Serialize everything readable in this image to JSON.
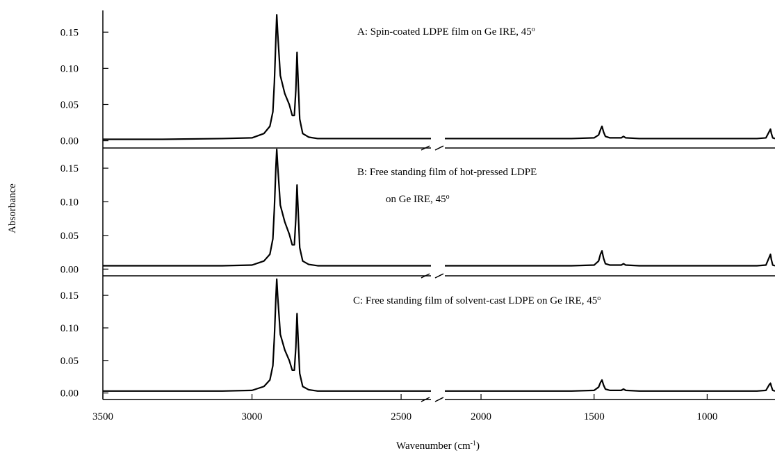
{
  "chart_data": [
    {
      "type": "line",
      "annotation": [
        {
          "text": "A:  Spin-coated LDPE film on Ge IRE, 45",
          "sup": "o"
        }
      ],
      "xlim": [
        [
          3500,
          2400
        ],
        [
          2160,
          700
        ]
      ],
      "ylim": [
        -0.01,
        0.18
      ],
      "yticks": [
        {
          "value": 0,
          "label": "0.00"
        },
        {
          "value": 0.05,
          "label": "0.05"
        },
        {
          "value": 0.1,
          "label": "0.10"
        },
        {
          "value": 0.15,
          "label": "0.15"
        }
      ],
      "x": [
        3500,
        3300,
        3100,
        3000,
        2960,
        2940,
        2930,
        2925,
        2920,
        2917,
        2914,
        2905,
        2890,
        2875,
        2865,
        2858,
        2853,
        2849,
        2845,
        2840,
        2830,
        2810,
        2780,
        2700,
        2600,
        2400,
        2300,
        2160,
        2000,
        1800,
        1600,
        1500,
        1480,
        1472,
        1465,
        1458,
        1450,
        1430,
        1380,
        1370,
        1360,
        1300,
        1100,
        900,
        780,
        740,
        730,
        725,
        720,
        716,
        710,
        700
      ],
      "series": [
        {
          "color": "#000000",
          "values": [
            0.002,
            0.002,
            0.003,
            0.004,
            0.01,
            0.02,
            0.04,
            0.08,
            0.14,
            0.174,
            0.15,
            0.09,
            0.065,
            0.05,
            0.035,
            0.035,
            0.07,
            0.122,
            0.08,
            0.03,
            0.01,
            0.005,
            0.003,
            0.003,
            0.003,
            0.003,
            null,
            0.003,
            0.003,
            0.003,
            0.003,
            0.004,
            0.008,
            0.015,
            0.02,
            0.012,
            0.006,
            0.004,
            0.004,
            0.006,
            0.004,
            0.003,
            0.003,
            0.003,
            0.003,
            0.004,
            0.01,
            0.013,
            0.016,
            0.01,
            0.004,
            0.003
          ]
        }
      ]
    },
    {
      "type": "line",
      "y_label": "Absorbance",
      "annotation": [
        {
          "text": "B:   Free standing film of hot-pressed LDPE"
        },
        {
          "text": "on Ge IRE, 45",
          "sup": "o"
        }
      ],
      "xlim": [
        [
          3500,
          2400
        ],
        [
          2160,
          700
        ]
      ],
      "ylim": [
        -0.01,
        0.18
      ],
      "yticks": [
        {
          "value": 0,
          "label": "0.00"
        },
        {
          "value": 0.05,
          "label": "0.05"
        },
        {
          "value": 0.1,
          "label": "0.10"
        },
        {
          "value": 0.15,
          "label": "0.15"
        }
      ],
      "x": [
        3500,
        3300,
        3100,
        3000,
        2960,
        2940,
        2930,
        2925,
        2920,
        2917,
        2914,
        2905,
        2890,
        2875,
        2865,
        2858,
        2853,
        2849,
        2845,
        2840,
        2830,
        2810,
        2780,
        2700,
        2600,
        2400,
        2300,
        2160,
        2000,
        1800,
        1600,
        1500,
        1480,
        1472,
        1465,
        1458,
        1450,
        1430,
        1380,
        1370,
        1360,
        1300,
        1100,
        900,
        780,
        740,
        730,
        725,
        720,
        716,
        710,
        700
      ],
      "series": [
        {
          "color": "#000000",
          "values": [
            0.005,
            0.005,
            0.005,
            0.006,
            0.012,
            0.022,
            0.045,
            0.09,
            0.15,
            0.178,
            0.155,
            0.095,
            0.07,
            0.052,
            0.036,
            0.036,
            0.075,
            0.125,
            0.085,
            0.032,
            0.012,
            0.007,
            0.005,
            0.005,
            0.005,
            0.005,
            null,
            0.005,
            0.005,
            0.005,
            0.005,
            0.006,
            0.012,
            0.022,
            0.027,
            0.016,
            0.008,
            0.006,
            0.006,
            0.008,
            0.006,
            0.005,
            0.005,
            0.005,
            0.005,
            0.006,
            0.014,
            0.018,
            0.022,
            0.014,
            0.006,
            0.005
          ]
        }
      ]
    },
    {
      "type": "line",
      "x_label": [
        {
          "text": "Wavenumber (cm",
          "sup": "-1",
          "tail": ")"
        }
      ],
      "annotation": [
        {
          "text": "C:   Free standing film of solvent-cast LDPE on Ge IRE, 45",
          "sup": "o"
        }
      ],
      "xlim": [
        [
          3500,
          2400
        ],
        [
          2160,
          700
        ]
      ],
      "xticks": [
        3500,
        3000,
        2500,
        2000,
        1500,
        1000
      ],
      "ylim": [
        -0.01,
        0.18
      ],
      "yticks": [
        {
          "value": 0,
          "label": "0.00"
        },
        {
          "value": 0.05,
          "label": "0.05"
        },
        {
          "value": 0.1,
          "label": "0.10"
        },
        {
          "value": 0.15,
          "label": "0.15"
        }
      ],
      "x": [
        3500,
        3300,
        3100,
        3000,
        2960,
        2940,
        2930,
        2925,
        2920,
        2917,
        2914,
        2905,
        2890,
        2875,
        2865,
        2858,
        2853,
        2849,
        2845,
        2840,
        2830,
        2810,
        2780,
        2700,
        2600,
        2400,
        2300,
        2160,
        2000,
        1800,
        1600,
        1500,
        1480,
        1472,
        1465,
        1458,
        1450,
        1430,
        1380,
        1370,
        1360,
        1300,
        1100,
        900,
        780,
        740,
        730,
        725,
        720,
        716,
        710,
        700
      ],
      "series": [
        {
          "color": "#000000",
          "values": [
            0.003,
            0.003,
            0.003,
            0.004,
            0.01,
            0.02,
            0.042,
            0.085,
            0.145,
            0.175,
            0.15,
            0.09,
            0.066,
            0.05,
            0.035,
            0.035,
            0.07,
            0.122,
            0.08,
            0.03,
            0.01,
            0.005,
            0.003,
            0.003,
            0.003,
            0.003,
            null,
            0.003,
            0.003,
            0.003,
            0.003,
            0.004,
            0.009,
            0.016,
            0.02,
            0.012,
            0.006,
            0.004,
            0.004,
            0.006,
            0.004,
            0.003,
            0.003,
            0.003,
            0.003,
            0.004,
            0.01,
            0.013,
            0.015,
            0.01,
            0.004,
            0.003
          ]
        }
      ]
    }
  ]
}
